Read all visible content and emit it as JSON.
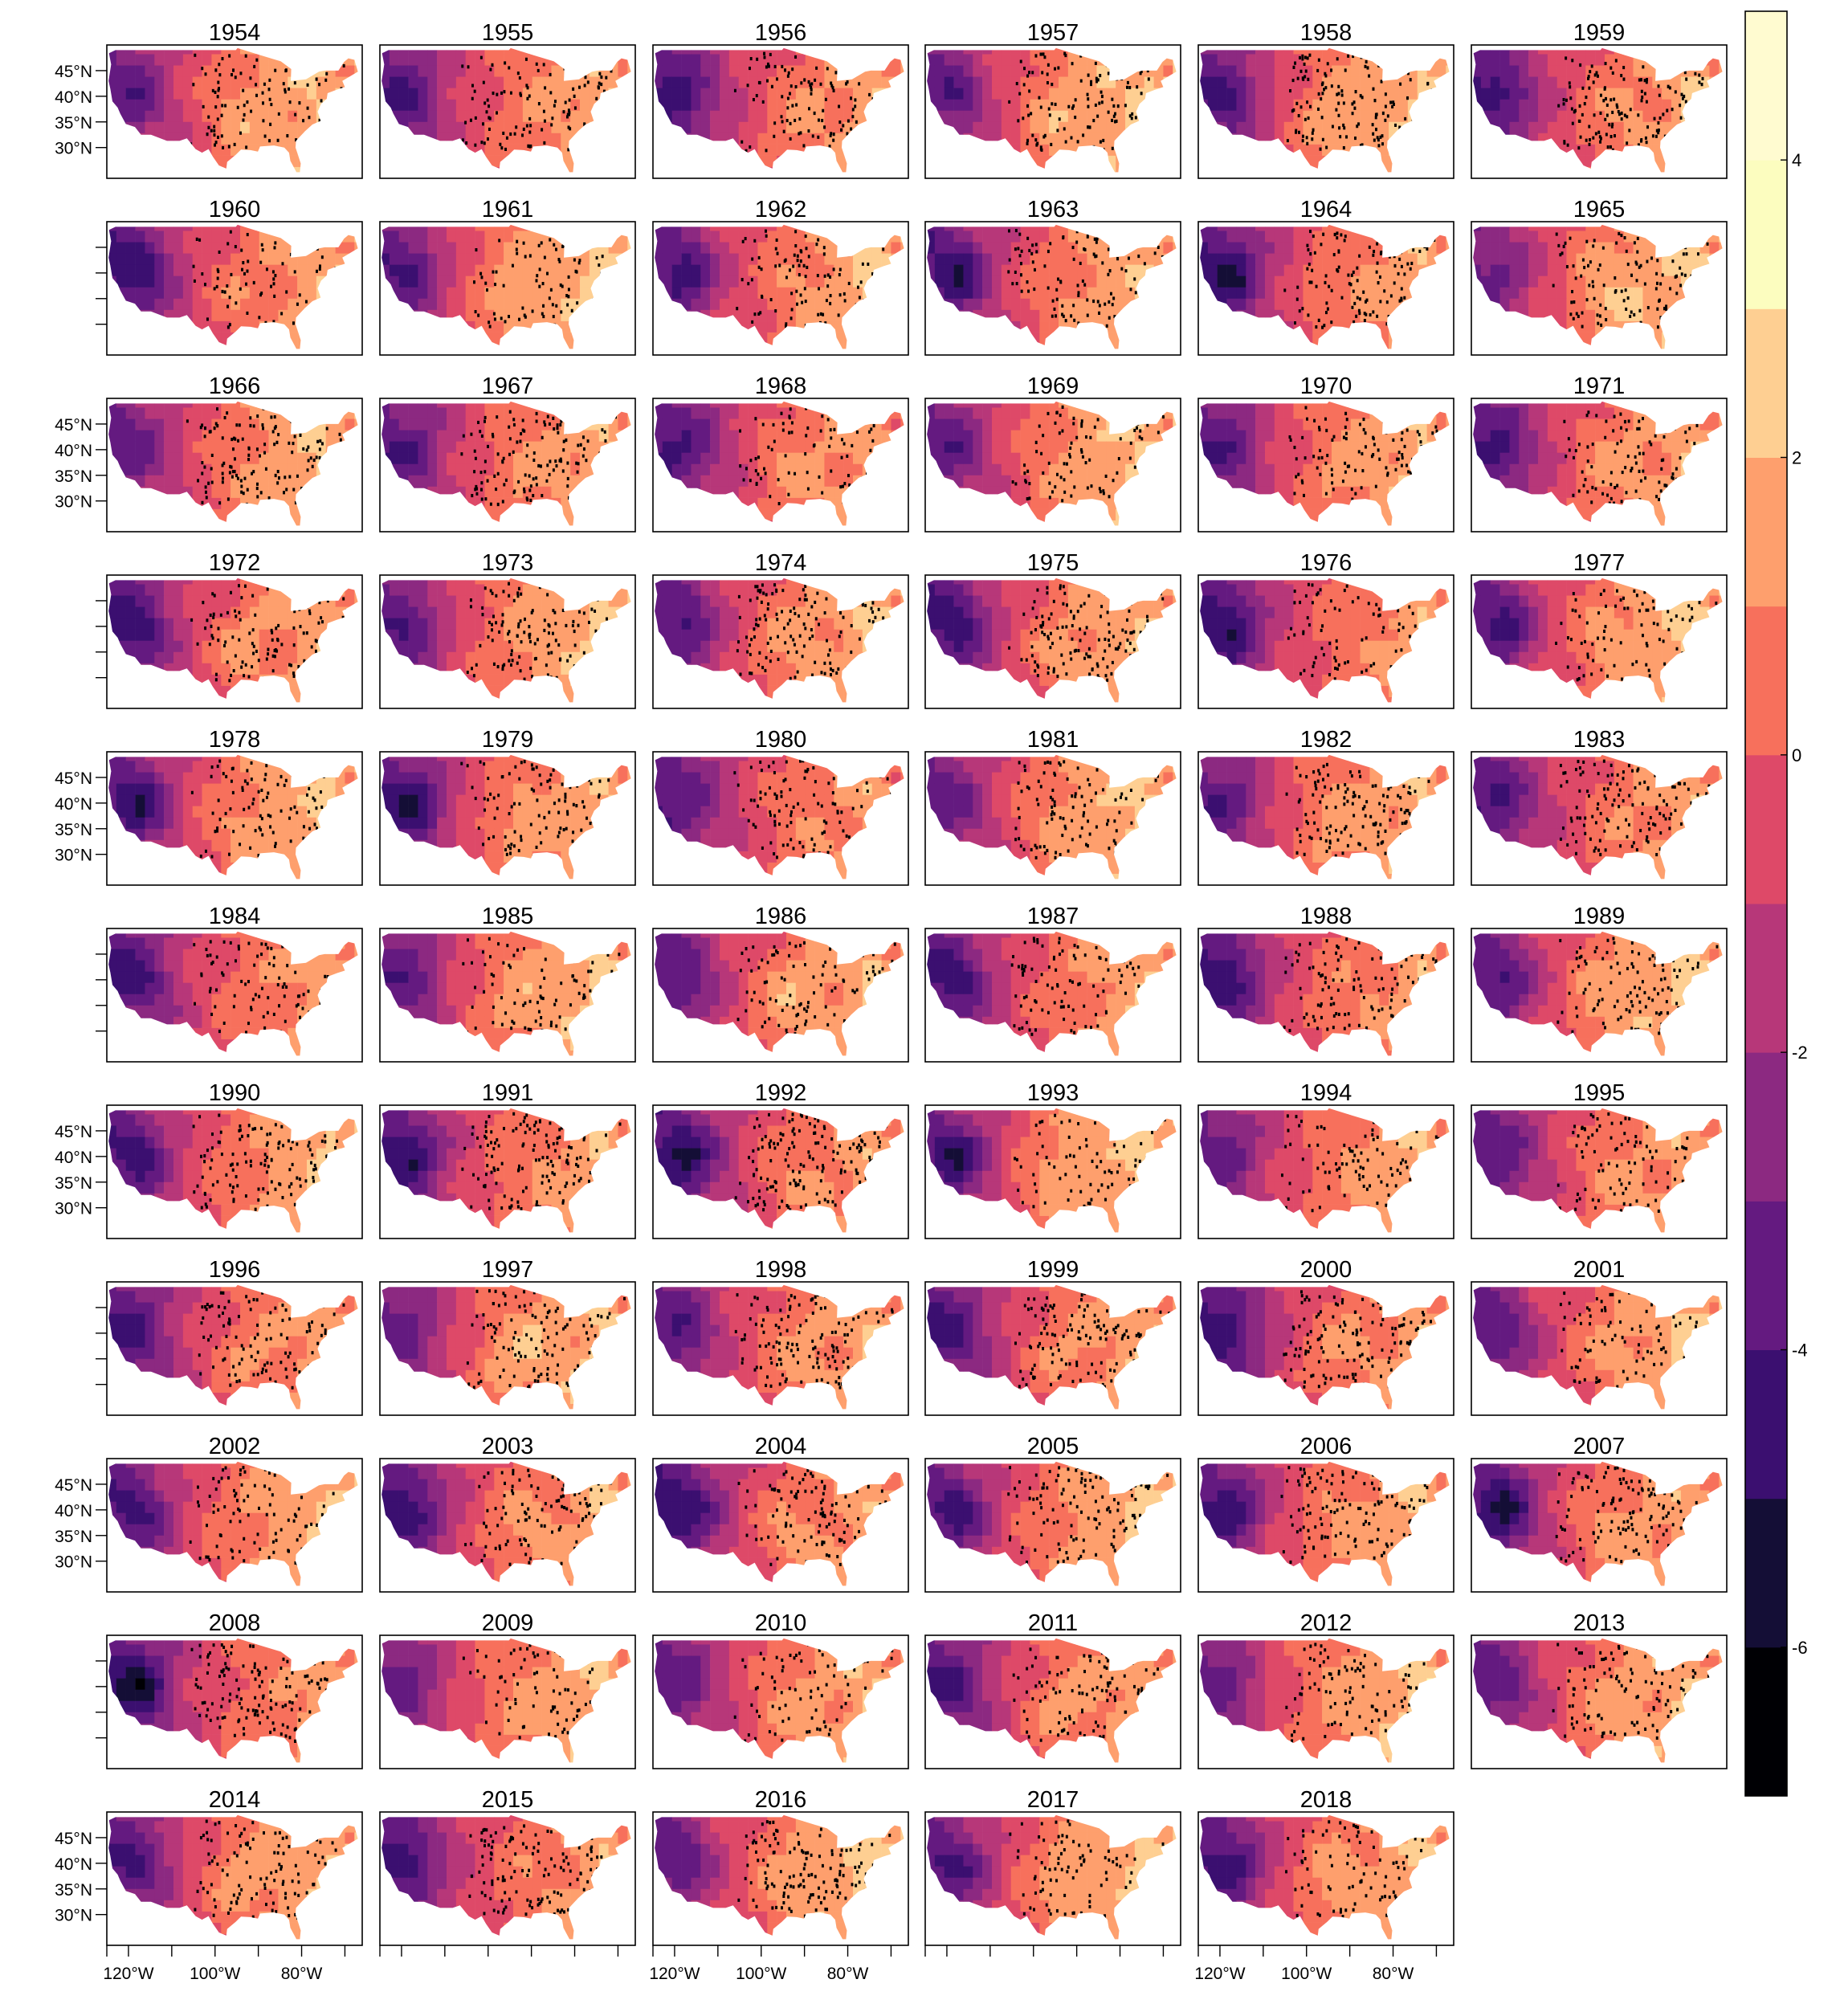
{
  "chart_data": {
    "type": "heatmap",
    "layout": "small-multiples",
    "panels": [
      "1954",
      "1955",
      "1956",
      "1957",
      "1958",
      "1959",
      "1960",
      "1961",
      "1962",
      "1963",
      "1964",
      "1965",
      "1966",
      "1967",
      "1968",
      "1969",
      "1970",
      "1971",
      "1972",
      "1973",
      "1974",
      "1975",
      "1976",
      "1977",
      "1978",
      "1979",
      "1980",
      "1981",
      "1982",
      "1983",
      "1984",
      "1985",
      "1986",
      "1987",
      "1988",
      "1989",
      "1990",
      "1991",
      "1992",
      "1993",
      "1994",
      "1995",
      "1996",
      "1997",
      "1998",
      "1999",
      "2000",
      "2001",
      "2002",
      "2003",
      "2004",
      "2005",
      "2006",
      "2007",
      "2008",
      "2009",
      "2010",
      "2011",
      "2012",
      "2013",
      "2014",
      "2015",
      "2016",
      "2017",
      "2018"
    ],
    "ncols": 6,
    "y_tick_labels": [
      "45°N",
      "40°N",
      "35°N",
      "30°N"
    ],
    "y_tick_values": [
      45,
      40,
      35,
      30
    ],
    "x_tick_labels": [
      "120°W",
      "100°W",
      "80°W"
    ],
    "x_tick_values": [
      -120,
      -100,
      -80
    ],
    "x_range": [
      -125,
      -66
    ],
    "y_range": [
      24,
      50
    ],
    "colorbar": {
      "ticks": [
        "4",
        "2",
        "0",
        "-2",
        "-4",
        "-6"
      ],
      "tick_values": [
        4,
        2,
        0,
        -2,
        -4,
        -6
      ],
      "range": [
        -7,
        5
      ],
      "breaks": [
        -7,
        -6,
        -5,
        -4,
        -3,
        -2,
        -1,
        0,
        1,
        2,
        3,
        4,
        5
      ],
      "colors": [
        "#000004",
        "#140e36",
        "#3b0f70",
        "#641a80",
        "#8c2981",
        "#b73779",
        "#de4968",
        "#f7705c",
        "#fe9f6d",
        "#fecf92",
        "#fcfdbf",
        "#fffbd0"
      ]
    },
    "legend_position": "right"
  }
}
